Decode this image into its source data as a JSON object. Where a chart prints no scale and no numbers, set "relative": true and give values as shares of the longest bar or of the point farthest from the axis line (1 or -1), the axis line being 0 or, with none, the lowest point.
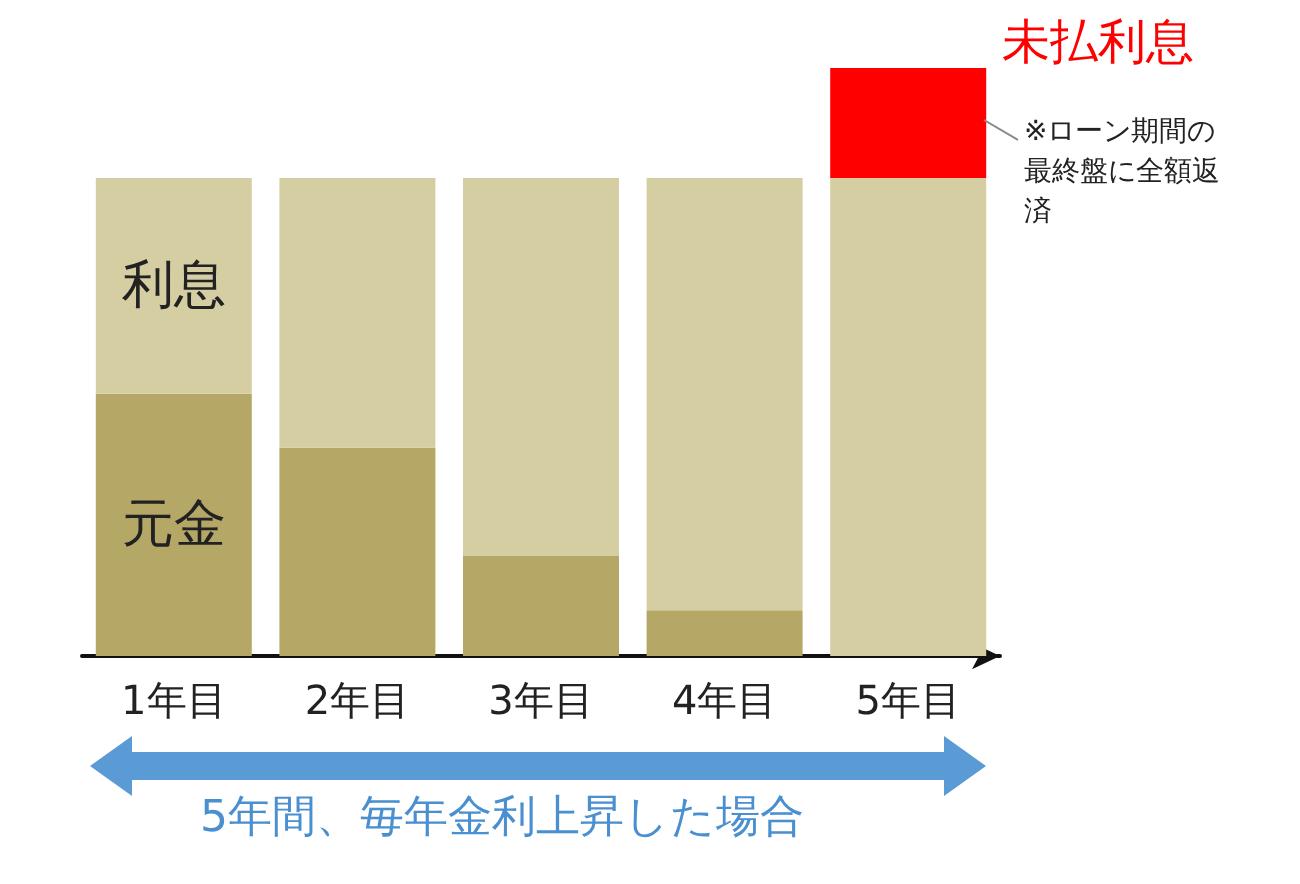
{
  "chart_data": {
    "type": "bar",
    "stacked": true,
    "relative": true,
    "legend": false,
    "categories": [
      "1年目",
      "2年目",
      "3年目",
      "4年目",
      "5年目"
    ],
    "series": [
      {
        "name": "元金",
        "color": "#b5a866",
        "values": [
          0.446,
          0.354,
          0.17,
          0.078,
          0
        ]
      },
      {
        "name": "利息",
        "color": "#d5cea2",
        "values": [
          0.367,
          0.459,
          0.643,
          0.735,
          0.813
        ]
      },
      {
        "name": "未払利息",
        "color": "#ff0000",
        "values": [
          0,
          0,
          0,
          0,
          0.187
        ]
      }
    ],
    "annotations": [
      "※ローン期間の最終盤に全額返済",
      "5年間、毎年金利上昇した場合"
    ]
  }
}
